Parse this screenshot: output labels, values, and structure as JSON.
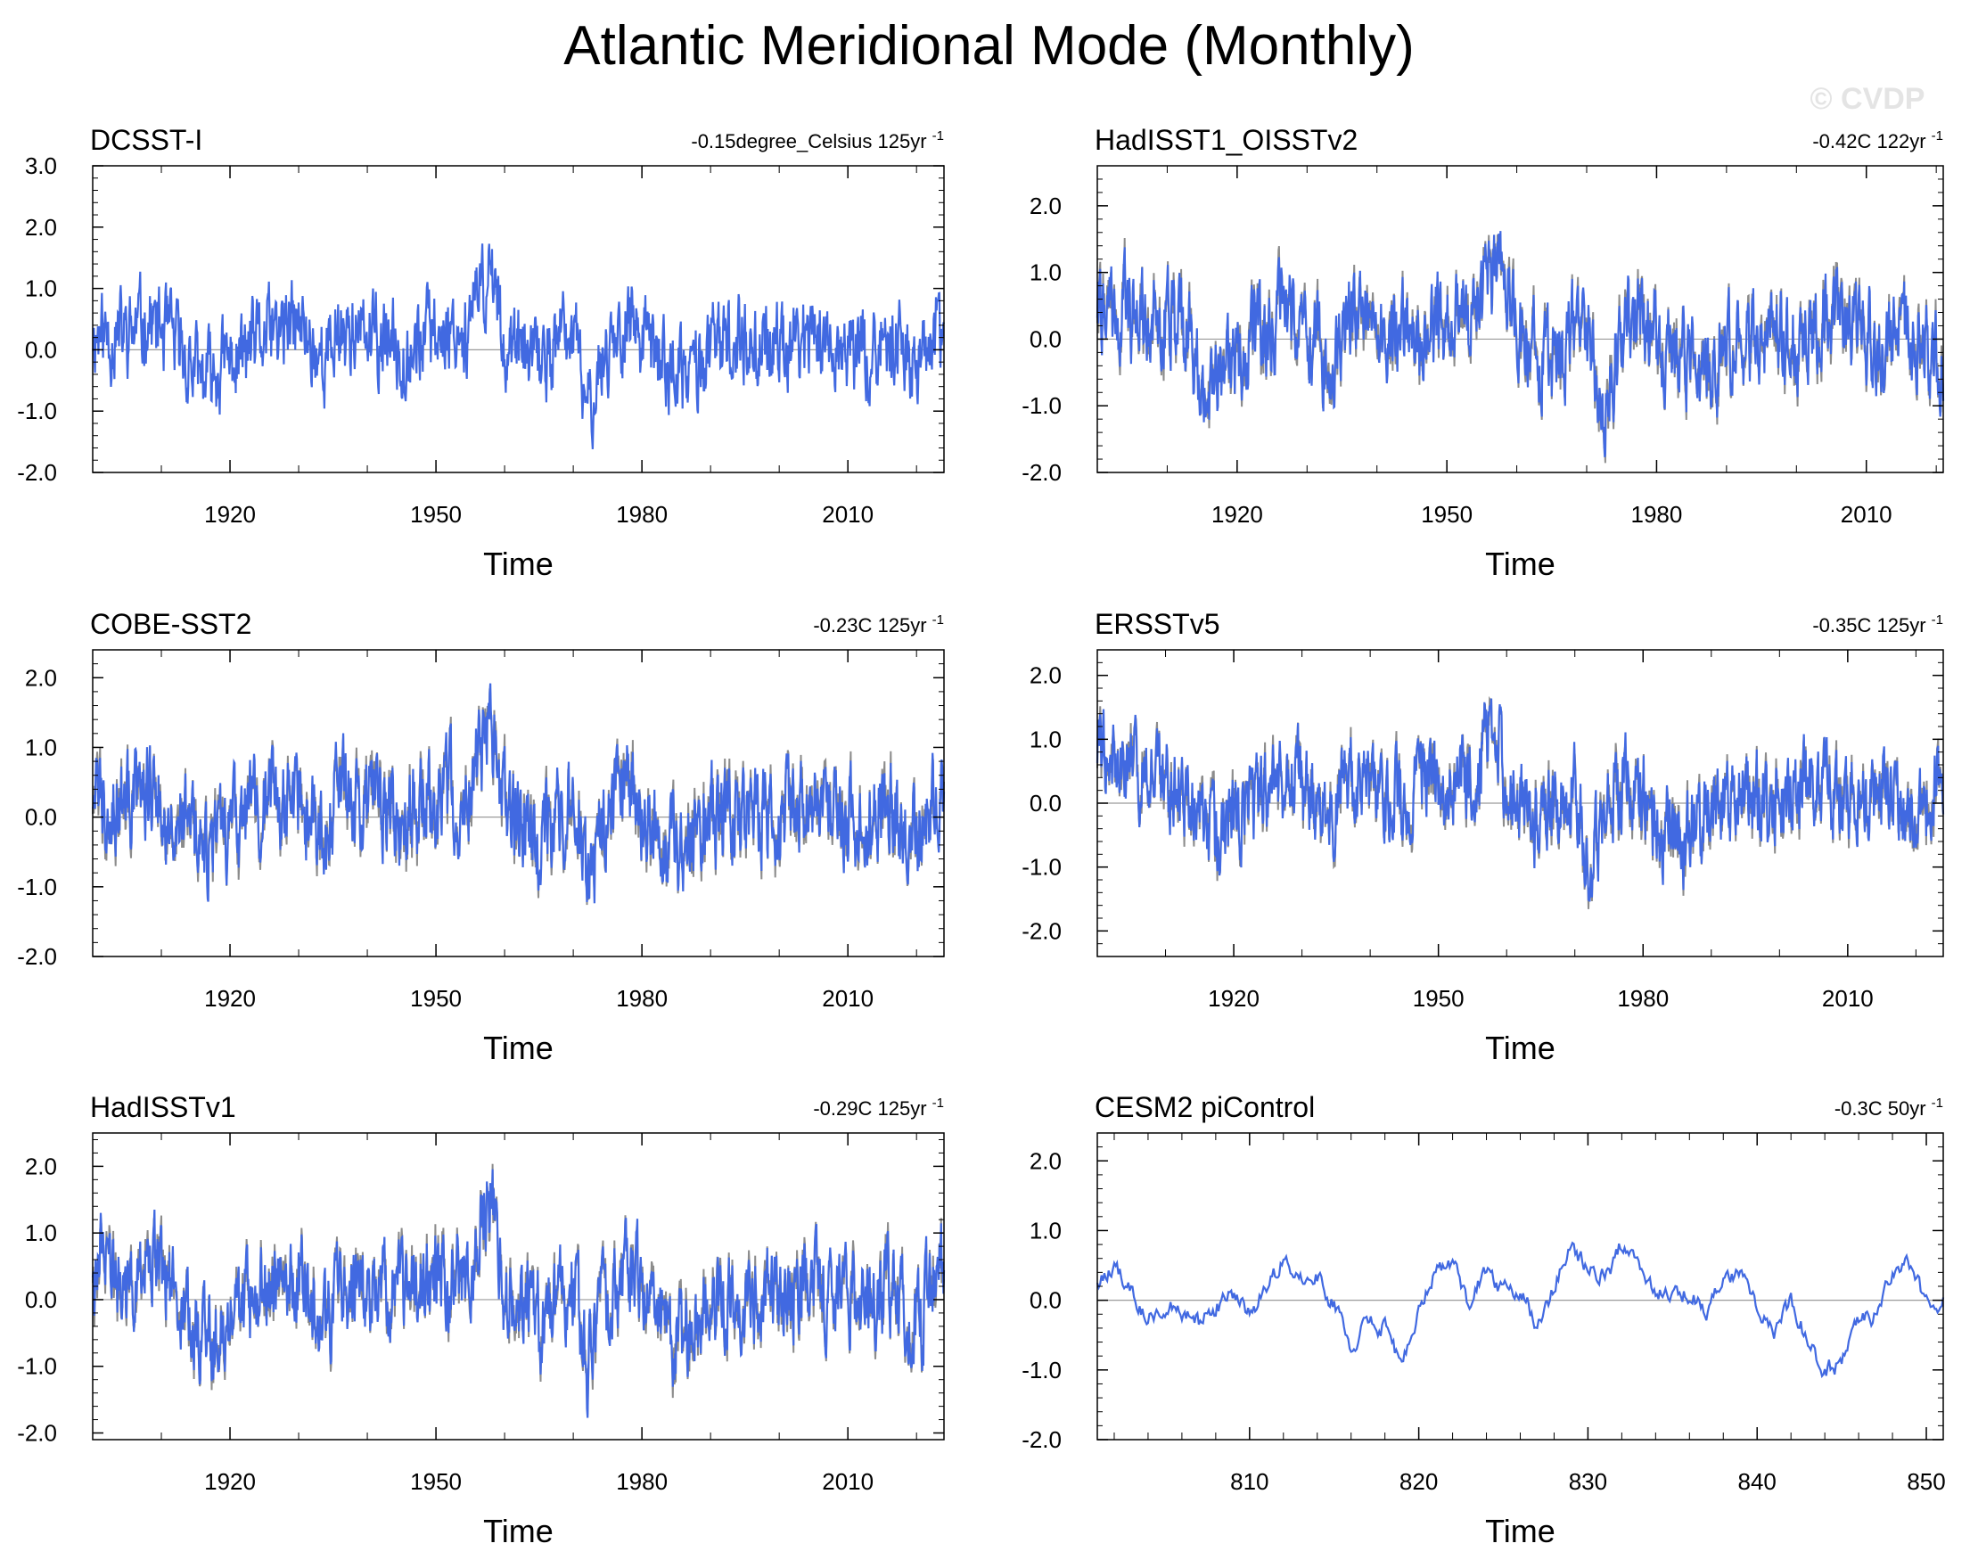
{
  "figure": {
    "title": "Atlantic Meridional Mode (Monthly)",
    "watermark": "© CVDP",
    "colors": {
      "series": "#4169e1",
      "observed": "#8c8c8c",
      "zero_line": "#9a9a9a",
      "frame": "#000000"
    }
  },
  "chart_data": [
    {
      "type": "line",
      "title": "DCSST-I",
      "trend": "-0.15degree_Celsius 125yr",
      "trend_exp": "-1",
      "xlabel": "Time",
      "ylabel": "",
      "xlim": [
        1900,
        2024
      ],
      "ylim": [
        -2,
        3
      ],
      "ytick_values": [
        -2,
        -1,
        0,
        1,
        2,
        3
      ],
      "ytick_labels": [
        "-2.0",
        "-1.0",
        "0.0",
        "1.0",
        "2.0",
        "3.0"
      ],
      "xtick_values": [
        1920,
        1950,
        1980,
        2010
      ],
      "xtick_labels": [
        "1920",
        "1950",
        "1980",
        "2010"
      ],
      "overlay": false,
      "seed": 11,
      "series_x": [
        1900,
        1905,
        1908,
        1912,
        1916,
        1920,
        1925,
        1930,
        1934,
        1936,
        1940,
        1945,
        1950,
        1955,
        1958,
        1960,
        1965,
        1970,
        1972,
        1975,
        1978,
        1982,
        1986,
        1990,
        1995,
        2000,
        2004,
        2008,
        2012,
        2016,
        2020,
        2024
      ],
      "series_y": [
        0.3,
        0.2,
        0.5,
        0.1,
        -0.5,
        -0.2,
        0.2,
        0.4,
        -0.2,
        0.4,
        0.2,
        0.0,
        0.3,
        0.4,
        1.4,
        0.1,
        -0.2,
        0.3,
        -1.0,
        0.1,
        0.5,
        -0.1,
        -0.5,
        0.0,
        0.2,
        0.0,
        0.3,
        0.1,
        -0.1,
        0.2,
        -0.2,
        0.3
      ]
    },
    {
      "type": "line",
      "title": "HadISST1_OISSTv2",
      "trend": "-0.42C 122yr",
      "trend_exp": "-1",
      "xlabel": "Time",
      "ylabel": "",
      "xlim": [
        1900,
        2021
      ],
      "ylim": [
        -2,
        2.6
      ],
      "ytick_values": [
        -2,
        -1,
        0,
        1,
        2
      ],
      "ytick_labels": [
        "-2.0",
        "-1.0",
        "0.0",
        "1.0",
        "2.0"
      ],
      "xtick_values": [
        1920,
        1950,
        1980,
        2010
      ],
      "xtick_labels": [
        "1920",
        "1950",
        "1980",
        "2010"
      ],
      "overlay": true,
      "seed": 22,
      "series_x": [
        1900,
        1905,
        1908,
        1912,
        1916,
        1920,
        1925,
        1930,
        1934,
        1936,
        1940,
        1945,
        1950,
        1955,
        1958,
        1960,
        1965,
        1970,
        1972,
        1975,
        1978,
        1982,
        1986,
        1990,
        1995,
        2000,
        2004,
        2008,
        2012,
        2016,
        2021
      ],
      "series_y": [
        0.6,
        0.3,
        0.5,
        0.2,
        -0.6,
        -0.3,
        0.2,
        0.3,
        -0.4,
        0.4,
        0.1,
        0.1,
        0.3,
        0.4,
        1.5,
        0.1,
        -0.3,
        0.3,
        -1.0,
        0.0,
        0.5,
        -0.2,
        -0.6,
        -0.1,
        0.1,
        0.0,
        0.3,
        0.2,
        -0.1,
        0.2,
        -0.4
      ]
    },
    {
      "type": "line",
      "title": "COBE-SST2",
      "trend": "-0.23C 125yr",
      "trend_exp": "-1",
      "xlabel": "Time",
      "ylabel": "",
      "xlim": [
        1900,
        2024
      ],
      "ylim": [
        -2,
        2.4
      ],
      "ytick_values": [
        -2,
        -1,
        0,
        1,
        2
      ],
      "ytick_labels": [
        "-2.0",
        "-1.0",
        "0.0",
        "1.0",
        "2.0"
      ],
      "xtick_values": [
        1920,
        1950,
        1980,
        2010
      ],
      "xtick_labels": [
        "1920",
        "1950",
        "1980",
        "2010"
      ],
      "overlay": true,
      "seed": 33,
      "series_x": [
        1900,
        1905,
        1908,
        1912,
        1916,
        1920,
        1925,
        1930,
        1934,
        1936,
        1940,
        1945,
        1950,
        1955,
        1958,
        1960,
        1965,
        1970,
        1972,
        1975,
        1978,
        1982,
        1986,
        1990,
        1995,
        2000,
        2004,
        2008,
        2012,
        2016,
        2020,
        2024
      ],
      "series_y": [
        0.4,
        0.2,
        0.5,
        0.1,
        -0.5,
        -0.3,
        0.2,
        0.3,
        -0.3,
        0.4,
        0.2,
        0.1,
        0.3,
        0.4,
        1.5,
        0.1,
        -0.3,
        0.3,
        -1.0,
        0.1,
        0.5,
        -0.2,
        -0.6,
        0.0,
        0.1,
        0.0,
        0.3,
        0.1,
        -0.1,
        0.2,
        -0.2,
        0.4
      ]
    },
    {
      "type": "line",
      "title": "ERSSTv5",
      "trend": "-0.35C 125yr",
      "trend_exp": "-1",
      "xlabel": "Time",
      "ylabel": "",
      "xlim": [
        1900,
        2024
      ],
      "ylim": [
        -2.4,
        2.4
      ],
      "ytick_values": [
        -2,
        -1,
        0,
        1,
        2
      ],
      "ytick_labels": [
        "-2.0",
        "-1.0",
        "0.0",
        "1.0",
        "2.0"
      ],
      "xtick_values": [
        1920,
        1950,
        1980,
        2010
      ],
      "xtick_labels": [
        "1920",
        "1950",
        "1980",
        "2010"
      ],
      "overlay": true,
      "seed": 44,
      "series_x": [
        1900,
        1905,
        1908,
        1912,
        1916,
        1920,
        1925,
        1930,
        1934,
        1936,
        1940,
        1945,
        1950,
        1955,
        1958,
        1960,
        1965,
        1970,
        1972,
        1975,
        1978,
        1982,
        1986,
        1990,
        1995,
        2000,
        2004,
        2008,
        2012,
        2016,
        2020,
        2024
      ],
      "series_y": [
        0.9,
        0.4,
        0.6,
        0.2,
        -0.5,
        -0.3,
        0.2,
        0.3,
        -0.4,
        0.4,
        0.2,
        0.1,
        0.3,
        0.4,
        1.4,
        0.1,
        -0.3,
        0.3,
        -1.1,
        0.0,
        0.5,
        -0.3,
        -0.6,
        0.0,
        0.1,
        0.0,
        0.3,
        0.2,
        -0.1,
        0.2,
        -0.3,
        0.4
      ]
    },
    {
      "type": "line",
      "title": "HadISSTv1",
      "trend": "-0.29C 125yr",
      "trend_exp": "-1",
      "xlabel": "Time",
      "ylabel": "",
      "xlim": [
        1900,
        2024
      ],
      "ylim": [
        -2.1,
        2.5
      ],
      "ytick_values": [
        -2,
        -1,
        0,
        1,
        2
      ],
      "ytick_labels": [
        "-2.0",
        "-1.0",
        "0.0",
        "1.0",
        "2.0"
      ],
      "xtick_values": [
        1920,
        1950,
        1980,
        2010
      ],
      "xtick_labels": [
        "1920",
        "1950",
        "1980",
        "2010"
      ],
      "overlay": true,
      "seed": 55,
      "series_x": [
        1900,
        1905,
        1908,
        1912,
        1916,
        1920,
        1925,
        1930,
        1934,
        1936,
        1940,
        1945,
        1950,
        1955,
        1958,
        1960,
        1965,
        1970,
        1972,
        1975,
        1978,
        1982,
        1986,
        1990,
        1995,
        2000,
        2004,
        2008,
        2012,
        2016,
        2020,
        2024
      ],
      "series_y": [
        0.6,
        0.3,
        0.5,
        0.2,
        -0.5,
        -0.3,
        0.2,
        0.3,
        -0.4,
        0.4,
        0.2,
        0.1,
        0.3,
        0.4,
        1.6,
        0.1,
        -0.3,
        0.3,
        -1.0,
        0.0,
        0.5,
        -0.2,
        -0.7,
        0.0,
        0.1,
        0.0,
        0.3,
        0.1,
        -0.1,
        0.2,
        -0.3,
        0.4
      ]
    },
    {
      "type": "line",
      "title": "CESM2 piControl",
      "trend": "-0.3C 50yr",
      "trend_exp": "-1",
      "xlabel": "Time",
      "ylabel": "",
      "xlim": [
        801,
        851
      ],
      "ylim": [
        -2,
        2.4
      ],
      "ytick_values": [
        -2,
        -1,
        0,
        1,
        2
      ],
      "ytick_labels": [
        "-2.0",
        "-1.0",
        "0.0",
        "1.0",
        "2.0"
      ],
      "xtick_values": [
        810,
        820,
        830,
        840,
        850
      ],
      "xtick_labels": [
        "810",
        "820",
        "830",
        "840",
        "850"
      ],
      "overlay": false,
      "seed": 66,
      "series_x": [
        801,
        802,
        803,
        804,
        805,
        806,
        807,
        808,
        809,
        810,
        811,
        812,
        813,
        814,
        815,
        816,
        817,
        818,
        819,
        820,
        821,
        822,
        823,
        824,
        825,
        826,
        827,
        828,
        829,
        830,
        831,
        832,
        833,
        834,
        835,
        836,
        837,
        838,
        839,
        840,
        841,
        842,
        843,
        844,
        845,
        846,
        847,
        848,
        849,
        850,
        851
      ],
      "series_y": [
        0.3,
        0.5,
        0.1,
        -0.3,
        -0.1,
        -0.2,
        -0.3,
        -0.1,
        0.1,
        -0.2,
        0.2,
        0.6,
        0.4,
        0.3,
        -0.1,
        -0.7,
        -0.3,
        -0.4,
        -1.0,
        -0.1,
        0.4,
        0.6,
        -0.1,
        0.5,
        0.1,
        0.2,
        -0.4,
        0.2,
        0.7,
        0.5,
        0.3,
        0.8,
        0.5,
        0.1,
        0.1,
        0.1,
        -0.1,
        0.4,
        0.3,
        -0.1,
        -0.4,
        0.0,
        -0.6,
        -1.0,
        -0.9,
        -0.3,
        -0.2,
        0.4,
        0.5,
        0.0,
        0.0
      ]
    }
  ]
}
